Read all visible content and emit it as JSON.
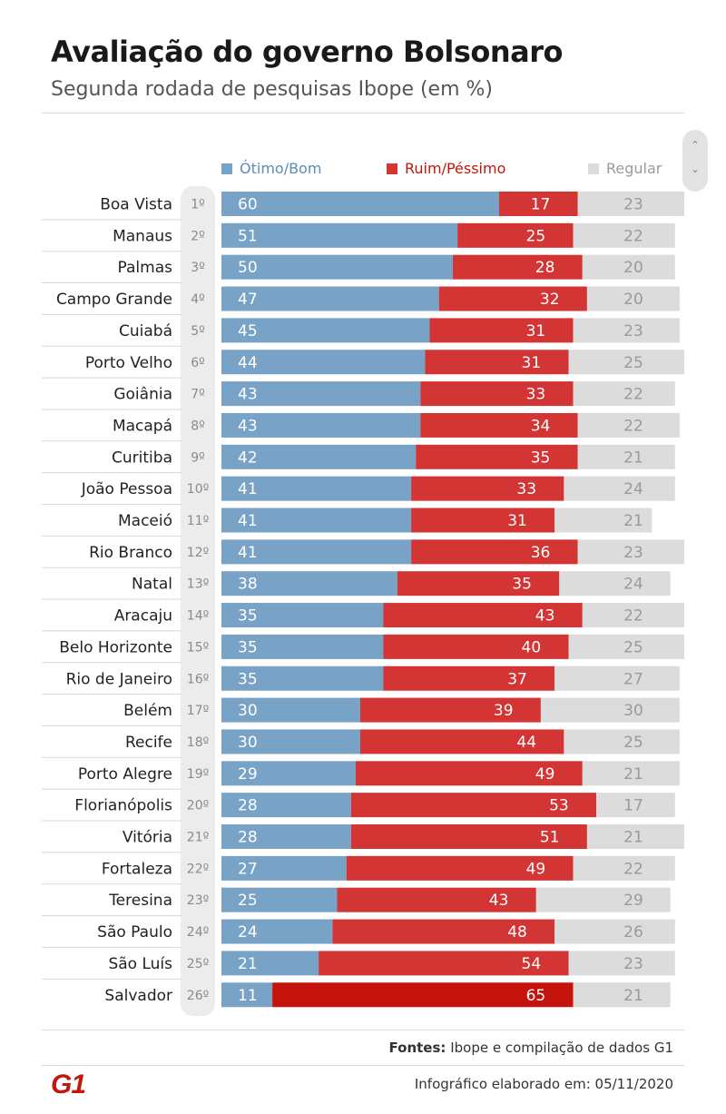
{
  "header": {
    "title": "Avaliação do governo Bolsonaro",
    "subtitle": "Segunda rodada de pesquisas Ibope (em %)"
  },
  "legend": {
    "good": "Ótimo/Bom",
    "bad": "Ruim/Péssimo",
    "neutral": "Regular"
  },
  "colors": {
    "good": "#78a2c6",
    "bad": "#d33535",
    "bad_highlight": "#c4120c",
    "neutral": "#dcdcdc",
    "legend_good_text": "#5b8cba",
    "legend_bad_text": "#c4170c",
    "legend_neutral_text": "#9a9a9a"
  },
  "chart_data": {
    "type": "bar",
    "orientation": "horizontal",
    "stacked": true,
    "categories": [
      "Boa Vista",
      "Manaus",
      "Palmas",
      "Campo Grande",
      "Cuiabá",
      "Porto Velho",
      "Goiânia",
      "Macapá",
      "Curitiba",
      "João Pessoa",
      "Maceió",
      "Rio Branco",
      "Natal",
      "Aracaju",
      "Belo Horizonte",
      "Rio de Janeiro",
      "Belém",
      "Recife",
      "Porto Alegre",
      "Florianópolis",
      "Vitória",
      "Fortaleza",
      "Teresina",
      "São Paulo",
      "São Luís",
      "Salvador"
    ],
    "ranks": [
      "1º",
      "2º",
      "3º",
      "4º",
      "5º",
      "6º",
      "7º",
      "8º",
      "9º",
      "10º",
      "11º",
      "12º",
      "13º",
      "14º",
      "15º",
      "16º",
      "17º",
      "18º",
      "19º",
      "20º",
      "21º",
      "22º",
      "23º",
      "24º",
      "25º",
      "26º"
    ],
    "series": [
      {
        "name": "Ótimo/Bom",
        "values": [
          60,
          51,
          50,
          47,
          45,
          44,
          43,
          43,
          42,
          41,
          41,
          41,
          38,
          35,
          35,
          35,
          30,
          30,
          29,
          28,
          28,
          27,
          25,
          24,
          21,
          11
        ]
      },
      {
        "name": "Ruim/Péssimo",
        "values": [
          17,
          25,
          28,
          32,
          31,
          31,
          33,
          34,
          35,
          33,
          31,
          36,
          35,
          43,
          40,
          37,
          39,
          44,
          49,
          53,
          51,
          49,
          43,
          48,
          54,
          65
        ]
      },
      {
        "name": "Regular",
        "values": [
          23,
          22,
          20,
          20,
          23,
          25,
          22,
          22,
          21,
          24,
          21,
          23,
          24,
          22,
          25,
          27,
          30,
          25,
          21,
          17,
          21,
          22,
          29,
          26,
          23,
          21
        ]
      }
    ],
    "legend_position": "top"
  },
  "footer": {
    "sources_label": "Fontes:",
    "sources_text": "Ibope e compilação de dados G1",
    "date_text": "Infográfico elaborado em: 05/11/2020",
    "logo": "G1"
  },
  "scroll": {
    "up_icon": "chevron-up-icon",
    "down_icon": "chevron-down-icon"
  }
}
